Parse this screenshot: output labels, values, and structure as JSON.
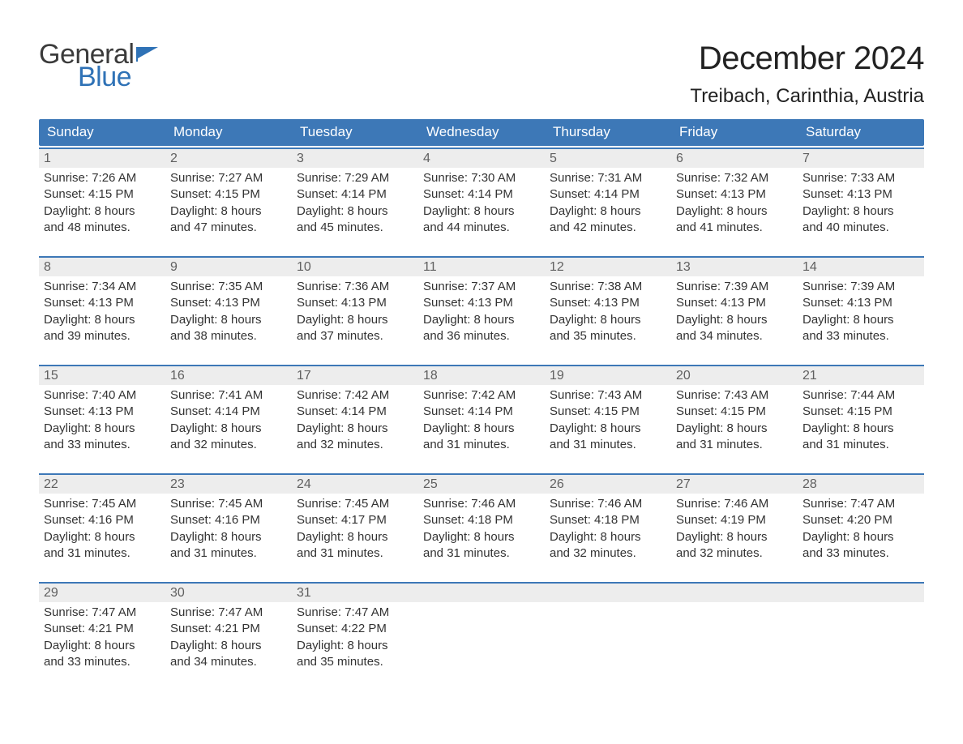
{
  "logo": {
    "word1": "General",
    "word2": "Blue",
    "word1_color": "#3b3b3b",
    "word2_color": "#2f72b6",
    "flag_color": "#2f72b6"
  },
  "title": {
    "month_year": "December 2024",
    "location": "Treibach, Carinthia, Austria",
    "title_fontsize": 40,
    "location_fontsize": 24,
    "text_color": "#222222"
  },
  "calendar": {
    "header_bg": "#3d78b7",
    "header_text_color": "#ffffff",
    "daynum_bg": "#ededed",
    "daynum_color": "#606060",
    "row_border_color": "#3d78b7",
    "body_text_color": "#333333",
    "background_color": "#ffffff",
    "days_of_week": [
      "Sunday",
      "Monday",
      "Tuesday",
      "Wednesday",
      "Thursday",
      "Friday",
      "Saturday"
    ],
    "weeks": [
      [
        {
          "num": "1",
          "sunrise": "Sunrise: 7:26 AM",
          "sunset": "Sunset: 4:15 PM",
          "dl1": "Daylight: 8 hours",
          "dl2": "and 48 minutes."
        },
        {
          "num": "2",
          "sunrise": "Sunrise: 7:27 AM",
          "sunset": "Sunset: 4:15 PM",
          "dl1": "Daylight: 8 hours",
          "dl2": "and 47 minutes."
        },
        {
          "num": "3",
          "sunrise": "Sunrise: 7:29 AM",
          "sunset": "Sunset: 4:14 PM",
          "dl1": "Daylight: 8 hours",
          "dl2": "and 45 minutes."
        },
        {
          "num": "4",
          "sunrise": "Sunrise: 7:30 AM",
          "sunset": "Sunset: 4:14 PM",
          "dl1": "Daylight: 8 hours",
          "dl2": "and 44 minutes."
        },
        {
          "num": "5",
          "sunrise": "Sunrise: 7:31 AM",
          "sunset": "Sunset: 4:14 PM",
          "dl1": "Daylight: 8 hours",
          "dl2": "and 42 minutes."
        },
        {
          "num": "6",
          "sunrise": "Sunrise: 7:32 AM",
          "sunset": "Sunset: 4:13 PM",
          "dl1": "Daylight: 8 hours",
          "dl2": "and 41 minutes."
        },
        {
          "num": "7",
          "sunrise": "Sunrise: 7:33 AM",
          "sunset": "Sunset: 4:13 PM",
          "dl1": "Daylight: 8 hours",
          "dl2": "and 40 minutes."
        }
      ],
      [
        {
          "num": "8",
          "sunrise": "Sunrise: 7:34 AM",
          "sunset": "Sunset: 4:13 PM",
          "dl1": "Daylight: 8 hours",
          "dl2": "and 39 minutes."
        },
        {
          "num": "9",
          "sunrise": "Sunrise: 7:35 AM",
          "sunset": "Sunset: 4:13 PM",
          "dl1": "Daylight: 8 hours",
          "dl2": "and 38 minutes."
        },
        {
          "num": "10",
          "sunrise": "Sunrise: 7:36 AM",
          "sunset": "Sunset: 4:13 PM",
          "dl1": "Daylight: 8 hours",
          "dl2": "and 37 minutes."
        },
        {
          "num": "11",
          "sunrise": "Sunrise: 7:37 AM",
          "sunset": "Sunset: 4:13 PM",
          "dl1": "Daylight: 8 hours",
          "dl2": "and 36 minutes."
        },
        {
          "num": "12",
          "sunrise": "Sunrise: 7:38 AM",
          "sunset": "Sunset: 4:13 PM",
          "dl1": "Daylight: 8 hours",
          "dl2": "and 35 minutes."
        },
        {
          "num": "13",
          "sunrise": "Sunrise: 7:39 AM",
          "sunset": "Sunset: 4:13 PM",
          "dl1": "Daylight: 8 hours",
          "dl2": "and 34 minutes."
        },
        {
          "num": "14",
          "sunrise": "Sunrise: 7:39 AM",
          "sunset": "Sunset: 4:13 PM",
          "dl1": "Daylight: 8 hours",
          "dl2": "and 33 minutes."
        }
      ],
      [
        {
          "num": "15",
          "sunrise": "Sunrise: 7:40 AM",
          "sunset": "Sunset: 4:13 PM",
          "dl1": "Daylight: 8 hours",
          "dl2": "and 33 minutes."
        },
        {
          "num": "16",
          "sunrise": "Sunrise: 7:41 AM",
          "sunset": "Sunset: 4:14 PM",
          "dl1": "Daylight: 8 hours",
          "dl2": "and 32 minutes."
        },
        {
          "num": "17",
          "sunrise": "Sunrise: 7:42 AM",
          "sunset": "Sunset: 4:14 PM",
          "dl1": "Daylight: 8 hours",
          "dl2": "and 32 minutes."
        },
        {
          "num": "18",
          "sunrise": "Sunrise: 7:42 AM",
          "sunset": "Sunset: 4:14 PM",
          "dl1": "Daylight: 8 hours",
          "dl2": "and 31 minutes."
        },
        {
          "num": "19",
          "sunrise": "Sunrise: 7:43 AM",
          "sunset": "Sunset: 4:15 PM",
          "dl1": "Daylight: 8 hours",
          "dl2": "and 31 minutes."
        },
        {
          "num": "20",
          "sunrise": "Sunrise: 7:43 AM",
          "sunset": "Sunset: 4:15 PM",
          "dl1": "Daylight: 8 hours",
          "dl2": "and 31 minutes."
        },
        {
          "num": "21",
          "sunrise": "Sunrise: 7:44 AM",
          "sunset": "Sunset: 4:15 PM",
          "dl1": "Daylight: 8 hours",
          "dl2": "and 31 minutes."
        }
      ],
      [
        {
          "num": "22",
          "sunrise": "Sunrise: 7:45 AM",
          "sunset": "Sunset: 4:16 PM",
          "dl1": "Daylight: 8 hours",
          "dl2": "and 31 minutes."
        },
        {
          "num": "23",
          "sunrise": "Sunrise: 7:45 AM",
          "sunset": "Sunset: 4:16 PM",
          "dl1": "Daylight: 8 hours",
          "dl2": "and 31 minutes."
        },
        {
          "num": "24",
          "sunrise": "Sunrise: 7:45 AM",
          "sunset": "Sunset: 4:17 PM",
          "dl1": "Daylight: 8 hours",
          "dl2": "and 31 minutes."
        },
        {
          "num": "25",
          "sunrise": "Sunrise: 7:46 AM",
          "sunset": "Sunset: 4:18 PM",
          "dl1": "Daylight: 8 hours",
          "dl2": "and 31 minutes."
        },
        {
          "num": "26",
          "sunrise": "Sunrise: 7:46 AM",
          "sunset": "Sunset: 4:18 PM",
          "dl1": "Daylight: 8 hours",
          "dl2": "and 32 minutes."
        },
        {
          "num": "27",
          "sunrise": "Sunrise: 7:46 AM",
          "sunset": "Sunset: 4:19 PM",
          "dl1": "Daylight: 8 hours",
          "dl2": "and 32 minutes."
        },
        {
          "num": "28",
          "sunrise": "Sunrise: 7:47 AM",
          "sunset": "Sunset: 4:20 PM",
          "dl1": "Daylight: 8 hours",
          "dl2": "and 33 minutes."
        }
      ],
      [
        {
          "num": "29",
          "sunrise": "Sunrise: 7:47 AM",
          "sunset": "Sunset: 4:21 PM",
          "dl1": "Daylight: 8 hours",
          "dl2": "and 33 minutes."
        },
        {
          "num": "30",
          "sunrise": "Sunrise: 7:47 AM",
          "sunset": "Sunset: 4:21 PM",
          "dl1": "Daylight: 8 hours",
          "dl2": "and 34 minutes."
        },
        {
          "num": "31",
          "sunrise": "Sunrise: 7:47 AM",
          "sunset": "Sunset: 4:22 PM",
          "dl1": "Daylight: 8 hours",
          "dl2": "and 35 minutes."
        },
        {
          "empty": true
        },
        {
          "empty": true
        },
        {
          "empty": true
        },
        {
          "empty": true
        }
      ]
    ]
  }
}
